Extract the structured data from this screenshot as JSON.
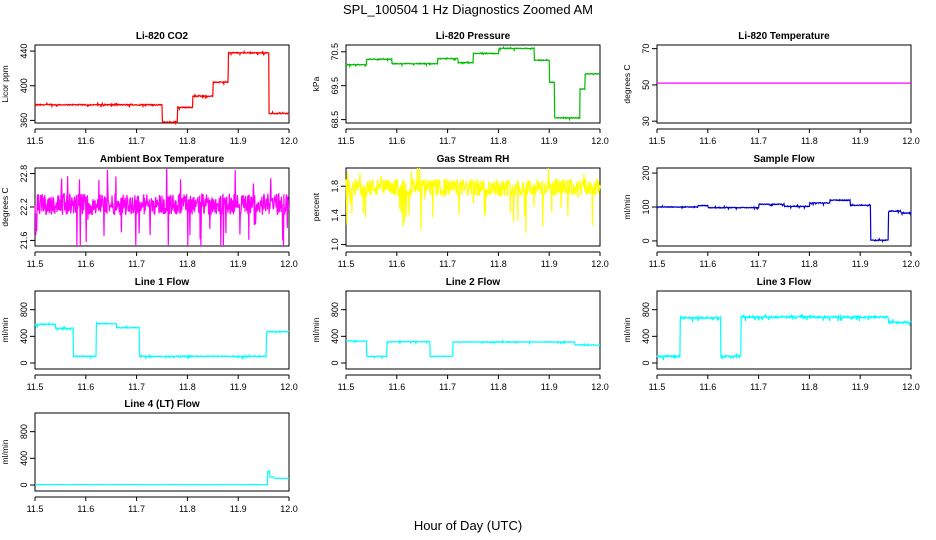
{
  "figure": {
    "title": "SPL_100504  1 Hz Diagnostics Zoomed AM",
    "xlabel": "Hour of Day (UTC)"
  },
  "chart_data": [
    {
      "type": "line",
      "title": "Li-820 CO2",
      "ylabel": "Licor ppm",
      "color": "#ff0000",
      "xlim": [
        11.5,
        12.0
      ],
      "ylim": [
        357,
        447
      ],
      "yticks": [
        360,
        400,
        440
      ],
      "xticks": [
        11.5,
        11.6,
        11.7,
        11.8,
        11.9,
        12.0
      ],
      "noise": 1,
      "segments": [
        [
          11.5,
          11.75,
          378
        ],
        [
          11.75,
          11.78,
          358
        ],
        [
          11.78,
          11.81,
          375
        ],
        [
          11.81,
          11.85,
          388
        ],
        [
          11.85,
          11.88,
          404
        ],
        [
          11.88,
          11.96,
          438
        ],
        [
          11.96,
          12.0,
          368
        ]
      ]
    },
    {
      "type": "line",
      "title": "Li-820 Pressure",
      "ylabel": "kPa",
      "color": "#00bb00",
      "xlim": [
        11.5,
        12.0
      ],
      "ylim": [
        68.4,
        70.7
      ],
      "yticks": [
        68.5,
        69.5,
        70.5
      ],
      "yticklabels": [
        "68.5",
        "69.5",
        "70.5"
      ],
      "xticks": [
        11.5,
        11.6,
        11.7,
        11.8,
        11.9,
        12.0
      ],
      "noise": 0.02,
      "segments": [
        [
          11.5,
          11.54,
          70.12
        ],
        [
          11.54,
          11.59,
          70.28
        ],
        [
          11.59,
          11.68,
          70.15
        ],
        [
          11.68,
          11.72,
          70.3
        ],
        [
          11.72,
          11.75,
          70.18
        ],
        [
          11.75,
          11.8,
          70.45
        ],
        [
          11.8,
          11.87,
          70.6
        ],
        [
          11.87,
          11.9,
          70.25
        ],
        [
          11.9,
          11.91,
          69.6
        ],
        [
          11.91,
          11.96,
          68.55
        ],
        [
          11.96,
          11.97,
          69.4
        ],
        [
          11.97,
          12.0,
          69.85
        ]
      ]
    },
    {
      "type": "line",
      "title": "Li-820 Temperature",
      "ylabel": "degrees C",
      "color": "#ff00ff",
      "xlim": [
        11.5,
        12.0
      ],
      "ylim": [
        29,
        72
      ],
      "yticks": [
        30,
        50,
        70
      ],
      "xticks": [
        11.5,
        11.6,
        11.7,
        11.8,
        11.9,
        12.0
      ],
      "noise": 0,
      "segments": [
        [
          11.5,
          12.0,
          51
        ]
      ]
    },
    {
      "type": "line",
      "title": "Ambient Box Temperature",
      "ylabel": "degrees C",
      "color": "#ff00ff",
      "xlim": [
        11.5,
        12.0
      ],
      "ylim": [
        21.5,
        22.9
      ],
      "yticks": [
        21.6,
        22.2,
        22.8
      ],
      "yticklabels": [
        "21.6",
        "22.2",
        "22.8"
      ],
      "xticks": [
        11.5,
        11.6,
        11.7,
        11.8,
        11.9,
        12.0
      ],
      "noise": 0.35,
      "segments": [
        [
          11.5,
          12.0,
          22.25
        ]
      ]
    },
    {
      "type": "line",
      "title": "Gas Stream RH",
      "ylabel": "percent",
      "color": "#ffff00",
      "xlim": [
        11.5,
        12.0
      ],
      "ylim": [
        0.98,
        2.05
      ],
      "yticks": [
        1.0,
        1.4,
        1.8
      ],
      "yticklabels": [
        "1.0",
        "1.4",
        "1.8"
      ],
      "xticks": [
        11.5,
        11.6,
        11.7,
        11.8,
        11.9,
        12.0
      ],
      "noise": 0.22,
      "segments": [
        [
          11.5,
          12.0,
          1.78
        ]
      ]
    },
    {
      "type": "line",
      "title": "Sample Flow",
      "ylabel": "ml/min",
      "color": "#0000cc",
      "xlim": [
        11.5,
        12.0
      ],
      "ylim": [
        -15,
        215
      ],
      "yticks": [
        0,
        100,
        200
      ],
      "xticks": [
        11.5,
        11.6,
        11.7,
        11.8,
        11.9,
        12.0
      ],
      "noise": 2,
      "segments": [
        [
          11.5,
          11.58,
          100
        ],
        [
          11.58,
          11.6,
          104
        ],
        [
          11.6,
          11.7,
          98
        ],
        [
          11.7,
          11.75,
          108
        ],
        [
          11.75,
          11.8,
          102
        ],
        [
          11.8,
          11.84,
          112
        ],
        [
          11.84,
          11.88,
          120
        ],
        [
          11.88,
          11.92,
          105
        ],
        [
          11.92,
          11.955,
          2
        ],
        [
          11.955,
          11.98,
          88
        ],
        [
          11.98,
          12.0,
          82
        ]
      ]
    },
    {
      "type": "line",
      "title": "Line 1 Flow",
      "ylabel": "ml/min",
      "color": "#00ffff",
      "xlim": [
        11.5,
        12.0
      ],
      "ylim": [
        -90,
        1080
      ],
      "yticks": [
        0,
        400,
        800
      ],
      "xticks": [
        11.5,
        11.6,
        11.7,
        11.8,
        11.9,
        12.0
      ],
      "noise": 12,
      "segments": [
        [
          11.5,
          11.54,
          580
        ],
        [
          11.54,
          11.575,
          520
        ],
        [
          11.575,
          11.62,
          100
        ],
        [
          11.62,
          11.66,
          590
        ],
        [
          11.66,
          11.705,
          530
        ],
        [
          11.705,
          11.955,
          100
        ],
        [
          11.955,
          12.0,
          470
        ]
      ]
    },
    {
      "type": "line",
      "title": "Line 2 Flow",
      "ylabel": "ml/min",
      "color": "#00ffff",
      "xlim": [
        11.5,
        12.0
      ],
      "ylim": [
        -90,
        1080
      ],
      "yticks": [
        0,
        400,
        800
      ],
      "xticks": [
        11.5,
        11.6,
        11.7,
        11.8,
        11.9,
        12.0
      ],
      "noise": 8,
      "segments": [
        [
          11.5,
          11.54,
          330
        ],
        [
          11.54,
          11.58,
          100
        ],
        [
          11.58,
          11.665,
          320
        ],
        [
          11.665,
          11.71,
          100
        ],
        [
          11.71,
          11.95,
          315
        ],
        [
          11.95,
          12.0,
          270
        ]
      ]
    },
    {
      "type": "line",
      "title": "Line 3 Flow",
      "ylabel": "ml/min",
      "color": "#00ffff",
      "xlim": [
        11.5,
        12.0
      ],
      "ylim": [
        -90,
        1080
      ],
      "yticks": [
        0,
        400,
        800
      ],
      "xticks": [
        11.5,
        11.6,
        11.7,
        11.8,
        11.9,
        12.0
      ],
      "noise": 25,
      "segments": [
        [
          11.5,
          11.545,
          100
        ],
        [
          11.545,
          11.625,
          680
        ],
        [
          11.625,
          11.665,
          100
        ],
        [
          11.665,
          11.955,
          690
        ],
        [
          11.955,
          12.0,
          610
        ]
      ]
    },
    {
      "type": "line",
      "title": "Line 4 (LT) Flow",
      "ylabel": "ml/min",
      "color": "#00ffff",
      "xlim": [
        11.5,
        12.0
      ],
      "ylim": [
        -90,
        1080
      ],
      "yticks": [
        0,
        400,
        800
      ],
      "xticks": [
        11.5,
        11.6,
        11.7,
        11.8,
        11.9,
        12.0
      ],
      "noise": 2,
      "segments": [
        [
          11.5,
          11.958,
          5
        ],
        [
          11.958,
          11.962,
          210
        ],
        [
          11.962,
          11.97,
          120
        ],
        [
          11.97,
          12.0,
          100
        ]
      ]
    }
  ]
}
